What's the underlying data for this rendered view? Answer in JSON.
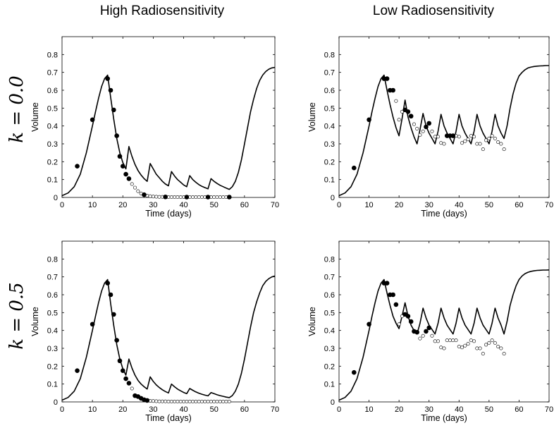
{
  "column_titles": [
    "High Radiosensitivity",
    "Low Radiosensitivity"
  ],
  "row_labels": [
    "k = 0.0",
    "k = 0.5"
  ],
  "chart_data": [
    {
      "type": "line",
      "title": "",
      "xlabel": "Time (days)",
      "ylabel": "Volume",
      "xlim": [
        0,
        70
      ],
      "ylim": [
        0,
        0.9
      ],
      "xticks": [
        0,
        10,
        20,
        30,
        40,
        50,
        60,
        70
      ],
      "yticks": [
        0,
        0.1,
        0.2,
        0.3,
        0.4,
        0.5,
        0.6,
        0.7,
        0.8
      ],
      "series": [
        {
          "style": "line",
          "color": "#000000",
          "x": [
            0,
            2,
            4,
            6,
            8,
            10,
            11,
            12,
            13,
            14,
            15,
            16,
            17,
            18,
            19,
            20,
            21,
            22,
            23,
            24,
            25,
            26,
            27,
            28,
            29,
            30,
            31,
            32,
            33,
            34,
            35,
            36,
            37,
            38,
            39,
            40,
            41,
            42,
            43,
            44,
            45,
            46,
            47,
            48,
            49,
            50,
            51,
            52,
            53,
            54,
            55,
            56,
            57,
            58,
            59,
            60,
            61,
            62,
            63,
            64,
            65,
            66,
            67,
            68,
            69,
            70
          ],
          "y": [
            0.01,
            0.025,
            0.06,
            0.13,
            0.25,
            0.4,
            0.48,
            0.555,
            0.62,
            0.665,
            0.685,
            0.56,
            0.44,
            0.33,
            0.25,
            0.195,
            0.16,
            0.285,
            0.23,
            0.185,
            0.15,
            0.125,
            0.105,
            0.09,
            0.19,
            0.16,
            0.13,
            0.11,
            0.09,
            0.075,
            0.065,
            0.145,
            0.12,
            0.1,
            0.085,
            0.07,
            0.06,
            0.122,
            0.1,
            0.085,
            0.072,
            0.062,
            0.055,
            0.048,
            0.105,
            0.09,
            0.078,
            0.068,
            0.06,
            0.052,
            0.045,
            0.06,
            0.09,
            0.14,
            0.21,
            0.3,
            0.39,
            0.48,
            0.55,
            0.61,
            0.655,
            0.685,
            0.705,
            0.718,
            0.725,
            0.728
          ]
        },
        {
          "style": "filled",
          "color": "#000000",
          "x": [
            5,
            10,
            15,
            16,
            17,
            18,
            19,
            20,
            21,
            22,
            27,
            34,
            41,
            48,
            55
          ],
          "y": [
            0.175,
            0.435,
            0.665,
            0.6,
            0.49,
            0.345,
            0.23,
            0.175,
            0.13,
            0.105,
            0.015,
            0.003,
            0.002,
            0.002,
            0.002
          ]
        },
        {
          "style": "open",
          "color": "#000000",
          "x": [
            23,
            24,
            25,
            26,
            28,
            29,
            30,
            31,
            32,
            33,
            35,
            36,
            37,
            38,
            39,
            40,
            42,
            43,
            44,
            45,
            46,
            47,
            49,
            50,
            51,
            52,
            53,
            54
          ],
          "y": [
            0.075,
            0.055,
            0.035,
            0.022,
            0.01,
            0.007,
            0.005,
            0.004,
            0.003,
            0.003,
            0.002,
            0.002,
            0.002,
            0.002,
            0.002,
            0.002,
            0.002,
            0.002,
            0.002,
            0.002,
            0.002,
            0.002,
            0.002,
            0.002,
            0.002,
            0.002,
            0.002,
            0.002
          ]
        }
      ]
    },
    {
      "type": "line",
      "title": "",
      "xlabel": "Time (days)",
      "ylabel": "Volume",
      "xlim": [
        0,
        70
      ],
      "ylim": [
        0,
        0.9
      ],
      "xticks": [
        0,
        10,
        20,
        30,
        40,
        50,
        60,
        70
      ],
      "yticks": [
        0,
        0.1,
        0.2,
        0.3,
        0.4,
        0.5,
        0.6,
        0.7,
        0.8
      ],
      "series": [
        {
          "style": "line",
          "color": "#000000",
          "x": [
            0,
            2,
            4,
            6,
            8,
            10,
            11,
            12,
            13,
            14,
            15,
            16,
            17,
            18,
            19,
            20,
            21,
            22,
            23,
            24,
            25,
            26,
            27,
            28,
            29,
            30,
            31,
            32,
            33,
            34,
            35,
            36,
            37,
            38,
            39,
            40,
            41,
            42,
            43,
            44,
            45,
            46,
            47,
            48,
            49,
            50,
            51,
            52,
            53,
            54,
            55,
            56,
            57,
            58,
            59,
            60,
            61,
            62,
            63,
            64,
            65,
            66,
            67,
            68,
            69,
            70
          ],
          "y": [
            0.01,
            0.025,
            0.06,
            0.13,
            0.25,
            0.4,
            0.48,
            0.555,
            0.62,
            0.665,
            0.685,
            0.6,
            0.52,
            0.45,
            0.39,
            0.345,
            0.44,
            0.545,
            0.45,
            0.39,
            0.34,
            0.3,
            0.38,
            0.47,
            0.4,
            0.36,
            0.33,
            0.3,
            0.37,
            0.465,
            0.4,
            0.36,
            0.33,
            0.3,
            0.37,
            0.465,
            0.4,
            0.36,
            0.33,
            0.3,
            0.37,
            0.465,
            0.4,
            0.36,
            0.33,
            0.3,
            0.37,
            0.465,
            0.4,
            0.36,
            0.33,
            0.4,
            0.5,
            0.58,
            0.64,
            0.68,
            0.7,
            0.715,
            0.725,
            0.73,
            0.733,
            0.735,
            0.736,
            0.737,
            0.738,
            0.738
          ]
        },
        {
          "style": "filled",
          "color": "#000000",
          "x": [
            5,
            10,
            15,
            16,
            17,
            18,
            22,
            23,
            24,
            29,
            30,
            36,
            37,
            38
          ],
          "y": [
            0.165,
            0.435,
            0.665,
            0.665,
            0.6,
            0.6,
            0.49,
            0.48,
            0.455,
            0.395,
            0.415,
            0.345,
            0.345,
            0.345
          ]
        },
        {
          "style": "open",
          "color": "#000000",
          "x": [
            19,
            20,
            21,
            25,
            26,
            27,
            28,
            31,
            32,
            33,
            34,
            35,
            39,
            40,
            41,
            42,
            43,
            44,
            45,
            46,
            47,
            48,
            49,
            50,
            51,
            52,
            53,
            54,
            55
          ],
          "y": [
            0.54,
            0.435,
            0.48,
            0.41,
            0.385,
            0.35,
            0.37,
            0.37,
            0.34,
            0.34,
            0.305,
            0.3,
            0.345,
            0.34,
            0.305,
            0.315,
            0.325,
            0.345,
            0.34,
            0.3,
            0.3,
            0.27,
            0.32,
            0.33,
            0.345,
            0.33,
            0.31,
            0.3,
            0.27
          ]
        }
      ]
    },
    {
      "type": "line",
      "title": "",
      "xlabel": "Time (days)",
      "ylabel": "Volume",
      "xlim": [
        0,
        70
      ],
      "ylim": [
        0,
        0.9
      ],
      "xticks": [
        0,
        10,
        20,
        30,
        40,
        50,
        60,
        70
      ],
      "yticks": [
        0,
        0.1,
        0.2,
        0.3,
        0.4,
        0.5,
        0.6,
        0.7,
        0.8
      ],
      "series": [
        {
          "style": "line",
          "color": "#000000",
          "x": [
            0,
            2,
            4,
            6,
            8,
            10,
            11,
            12,
            13,
            14,
            15,
            16,
            17,
            18,
            19,
            20,
            21,
            22,
            23,
            24,
            25,
            26,
            27,
            28,
            29,
            30,
            31,
            32,
            33,
            34,
            35,
            36,
            37,
            38,
            39,
            40,
            41,
            42,
            43,
            44,
            45,
            46,
            47,
            48,
            49,
            50,
            51,
            52,
            53,
            54,
            55,
            56,
            57,
            58,
            59,
            60,
            61,
            62,
            63,
            64,
            65,
            66,
            67,
            68,
            69,
            70
          ],
          "y": [
            0.01,
            0.025,
            0.06,
            0.13,
            0.25,
            0.4,
            0.48,
            0.555,
            0.62,
            0.665,
            0.685,
            0.55,
            0.43,
            0.32,
            0.24,
            0.185,
            0.15,
            0.24,
            0.19,
            0.15,
            0.12,
            0.1,
            0.085,
            0.072,
            0.14,
            0.115,
            0.095,
            0.08,
            0.068,
            0.058,
            0.05,
            0.1,
            0.085,
            0.072,
            0.062,
            0.053,
            0.046,
            0.075,
            0.065,
            0.056,
            0.049,
            0.043,
            0.038,
            0.034,
            0.052,
            0.046,
            0.04,
            0.035,
            0.031,
            0.027,
            0.024,
            0.035,
            0.06,
            0.1,
            0.16,
            0.24,
            0.33,
            0.42,
            0.5,
            0.56,
            0.61,
            0.65,
            0.675,
            0.69,
            0.7,
            0.705
          ]
        },
        {
          "style": "filled",
          "color": "#000000",
          "x": [
            5,
            10,
            15,
            16,
            17,
            18,
            19,
            20,
            21,
            22,
            24,
            25,
            26,
            27,
            28
          ],
          "y": [
            0.175,
            0.435,
            0.665,
            0.6,
            0.49,
            0.345,
            0.23,
            0.175,
            0.13,
            0.105,
            0.035,
            0.03,
            0.02,
            0.012,
            0.008
          ]
        },
        {
          "style": "open",
          "color": "#000000",
          "x": [
            23,
            29,
            30,
            31,
            32,
            33,
            34,
            35,
            36,
            37,
            38,
            39,
            40,
            41,
            42,
            43,
            44,
            45,
            46,
            47,
            48,
            49,
            50,
            51,
            52,
            53,
            54,
            55
          ],
          "y": [
            0.075,
            0.006,
            0.005,
            0.004,
            0.003,
            0.003,
            0.003,
            0.002,
            0.002,
            0.002,
            0.002,
            0.002,
            0.002,
            0.002,
            0.002,
            0.002,
            0.002,
            0.002,
            0.002,
            0.002,
            0.002,
            0.002,
            0.002,
            0.002,
            0.002,
            0.002,
            0.002,
            0.002
          ]
        }
      ]
    },
    {
      "type": "line",
      "title": "",
      "xlabel": "Time (days)",
      "ylabel": "Volume",
      "xlim": [
        0,
        70
      ],
      "ylim": [
        0,
        0.9
      ],
      "xticks": [
        0,
        10,
        20,
        30,
        40,
        50,
        60,
        70
      ],
      "yticks": [
        0,
        0.1,
        0.2,
        0.3,
        0.4,
        0.5,
        0.6,
        0.7,
        0.8
      ],
      "series": [
        {
          "style": "line",
          "color": "#000000",
          "x": [
            0,
            2,
            4,
            6,
            8,
            10,
            11,
            12,
            13,
            14,
            15,
            16,
            17,
            18,
            19,
            20,
            21,
            22,
            23,
            24,
            25,
            26,
            27,
            28,
            29,
            30,
            31,
            32,
            33,
            34,
            35,
            36,
            37,
            38,
            39,
            40,
            41,
            42,
            43,
            44,
            45,
            46,
            47,
            48,
            49,
            50,
            51,
            52,
            53,
            54,
            55,
            56,
            57,
            58,
            59,
            60,
            61,
            62,
            63,
            64,
            65,
            66,
            67,
            68,
            69,
            70
          ],
          "y": [
            0.01,
            0.025,
            0.06,
            0.13,
            0.25,
            0.4,
            0.48,
            0.555,
            0.62,
            0.665,
            0.685,
            0.61,
            0.54,
            0.48,
            0.44,
            0.41,
            0.48,
            0.555,
            0.48,
            0.43,
            0.4,
            0.38,
            0.44,
            0.525,
            0.47,
            0.43,
            0.405,
            0.38,
            0.44,
            0.525,
            0.47,
            0.43,
            0.405,
            0.38,
            0.44,
            0.525,
            0.47,
            0.43,
            0.405,
            0.38,
            0.44,
            0.525,
            0.47,
            0.43,
            0.405,
            0.38,
            0.44,
            0.525,
            0.47,
            0.43,
            0.38,
            0.45,
            0.54,
            0.6,
            0.65,
            0.685,
            0.705,
            0.718,
            0.726,
            0.731,
            0.734,
            0.736,
            0.737,
            0.738,
            0.738,
            0.739
          ]
        },
        {
          "style": "filled",
          "color": "#000000",
          "x": [
            5,
            10,
            15,
            16,
            17,
            18,
            19,
            22,
            23,
            24,
            25,
            26,
            29,
            30
          ],
          "y": [
            0.165,
            0.435,
            0.665,
            0.665,
            0.6,
            0.6,
            0.545,
            0.49,
            0.48,
            0.45,
            0.395,
            0.39,
            0.395,
            0.415
          ]
        },
        {
          "style": "open",
          "color": "#000000",
          "x": [
            20,
            21,
            27,
            28,
            31,
            32,
            33,
            34,
            35,
            36,
            37,
            38,
            39,
            40,
            41,
            42,
            43,
            44,
            45,
            46,
            47,
            48,
            49,
            50,
            51,
            52,
            53,
            54,
            55
          ],
          "y": [
            0.435,
            0.48,
            0.355,
            0.37,
            0.37,
            0.34,
            0.34,
            0.305,
            0.3,
            0.345,
            0.345,
            0.345,
            0.345,
            0.31,
            0.305,
            0.315,
            0.325,
            0.345,
            0.34,
            0.3,
            0.3,
            0.27,
            0.32,
            0.33,
            0.345,
            0.33,
            0.31,
            0.3,
            0.27
          ]
        }
      ]
    }
  ]
}
